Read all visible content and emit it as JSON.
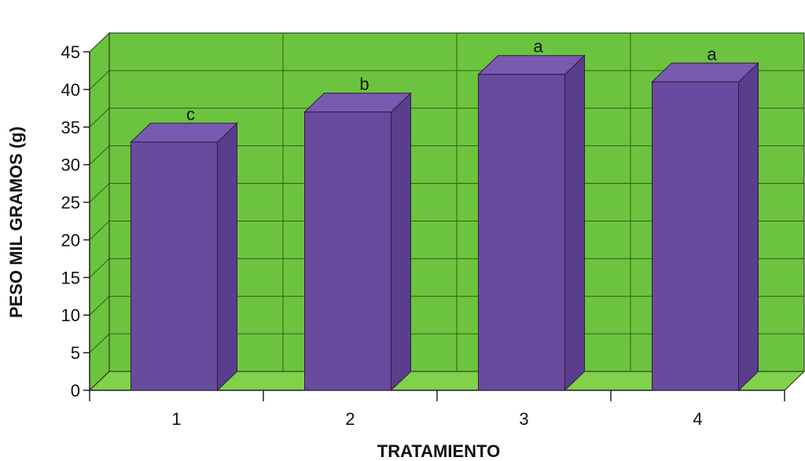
{
  "chart_data": {
    "type": "bar",
    "title": "",
    "xlabel": "TRATAMIENTO",
    "ylabel": "PESO MIL GRAMOS (g)",
    "categories": [
      "1",
      "2",
      "3",
      "4"
    ],
    "values": [
      33,
      37,
      42,
      41
    ],
    "significance_labels": [
      "c",
      "b",
      "a",
      "a"
    ],
    "ylim": [
      0,
      45
    ],
    "yticks": [
      0,
      5,
      10,
      15,
      20,
      25,
      30,
      35,
      40,
      45
    ],
    "grid": true,
    "colors": {
      "bar_front": "#6a4a9e",
      "bar_side": "#5a3d8c",
      "bar_top": "#7a59b0",
      "plot_background": "#6cc43e",
      "floor": "#7fd24a",
      "gridline": "#2f5d1a"
    }
  }
}
